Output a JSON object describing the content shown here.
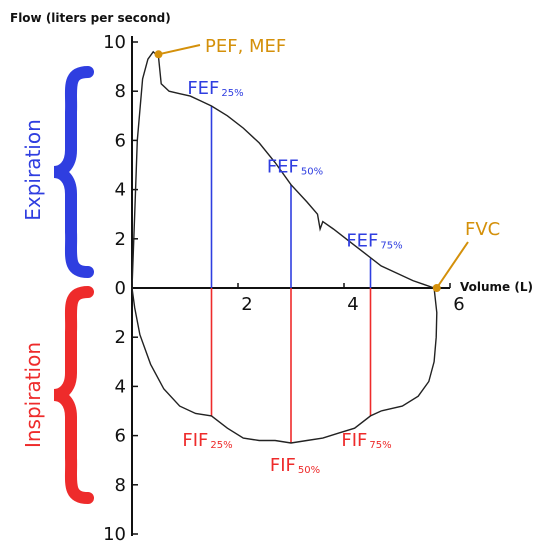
{
  "chart_data": {
    "type": "line",
    "title": "",
    "ylabel": "Flow (liters per second)",
    "xlabel": "Volume (L)",
    "xlim": [
      0,
      6
    ],
    "ylim": [
      -10,
      10
    ],
    "x_ticks": [
      "2",
      "4",
      "6"
    ],
    "y_ticks": [
      "10",
      "8",
      "6",
      "4",
      "2",
      "0",
      "2",
      "4",
      "6",
      "8",
      "10"
    ],
    "region_labels": {
      "expiration": "Expiration",
      "inspiration": "Inspiration"
    },
    "curve": {
      "x": [
        0,
        0.05,
        0.1,
        0.2,
        0.3,
        0.4,
        0.5,
        0.55,
        0.7,
        0.9,
        1.1,
        1.3,
        1.5,
        1.8,
        2.1,
        2.4,
        2.7,
        3.0,
        3.3,
        3.5,
        3.55,
        3.6,
        3.8,
        4.1,
        4.4,
        4.7,
        5.0,
        5.3,
        5.5,
        5.7,
        5.75,
        5.74,
        5.7,
        5.6,
        5.4,
        5.1,
        4.7,
        4.5,
        4.2,
        3.9,
        3.6,
        3.3,
        3.0,
        2.7,
        2.4,
        2.1,
        1.8,
        1.5,
        1.2,
        0.9,
        0.6,
        0.35,
        0.15,
        0.05,
        0
      ],
      "y": [
        0,
        3,
        6,
        8.5,
        9.3,
        9.6,
        9.4,
        8.3,
        8.0,
        7.9,
        7.8,
        7.6,
        7.4,
        7.0,
        6.5,
        5.9,
        5.1,
        4.2,
        3.5,
        3.0,
        2.4,
        2.7,
        2.4,
        1.9,
        1.4,
        0.9,
        0.6,
        0.3,
        0.15,
        0,
        -1.0,
        -2.0,
        -3.0,
        -3.8,
        -4.4,
        -4.8,
        -5.0,
        -5.2,
        -5.7,
        -5.9,
        -6.1,
        -6.2,
        -6.3,
        -6.2,
        -6.2,
        -6.1,
        -5.7,
        -5.2,
        -5.1,
        -4.8,
        -4.1,
        -3.1,
        -1.9,
        -0.8,
        0
      ]
    },
    "markers": [
      {
        "name": "PEF, MEF",
        "x": 0.5,
        "y": 9.5,
        "color": "#d4900a"
      },
      {
        "name": "FVC",
        "x": 5.75,
        "y": 0,
        "color": "#d4900a"
      }
    ],
    "vlines": [
      {
        "x": 1.5,
        "y_top": 7.4,
        "y_bottom": -5.2,
        "exp_label": "FEF",
        "exp_sub": "25%",
        "insp_label": "FIF",
        "insp_sub": "25%"
      },
      {
        "x": 3.0,
        "y_top": 4.2,
        "y_bottom": -6.3,
        "exp_label": "FEF",
        "exp_sub": "50%",
        "insp_label": "FIF",
        "insp_sub": "50%"
      },
      {
        "x": 4.5,
        "y_top": 1.2,
        "y_bottom": -5.2,
        "exp_label": "FEF",
        "exp_sub": "75%",
        "insp_label": "FIF",
        "insp_sub": "75%"
      }
    ],
    "colors": {
      "curve": "#222222",
      "expiration": "#2f3ee0",
      "inspiration": "#ee2b2b",
      "annotation": "#d4900a"
    }
  }
}
